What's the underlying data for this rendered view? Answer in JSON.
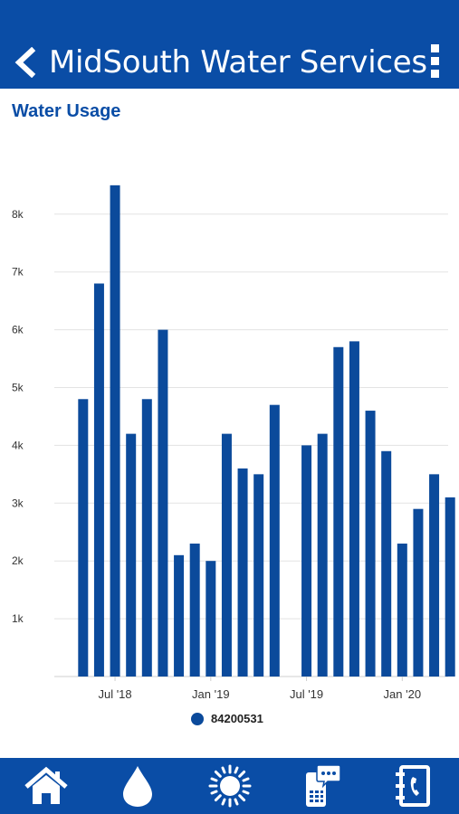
{
  "header": {
    "title": "MidSouth Water Services",
    "back_icon": "chevron-left-icon",
    "menu_icon": "more-vertical-icon"
  },
  "page": {
    "title": "Water Usage"
  },
  "colors": {
    "brand": "#0a4da6",
    "bar": "#0b4a9b",
    "grid": "#e3e3e3"
  },
  "chart_data": {
    "type": "bar",
    "categories": [
      "May '18",
      "Jun '18",
      "Jul '18",
      "Aug '18",
      "Sep '18",
      "Oct '18",
      "Nov '18",
      "Dec '18",
      "Jan '19",
      "Feb '19",
      "Mar '19",
      "Apr '19",
      "May '19",
      "Jun '19",
      "Jul '19",
      "Aug '19",
      "Sep '19",
      "Oct '19",
      "Nov '19",
      "Dec '19",
      "Jan '20",
      "Feb '20",
      "Mar '20",
      "Apr '20"
    ],
    "series": [
      {
        "name": "84200531",
        "values": [
          4800,
          6800,
          8500,
          4200,
          4800,
          6000,
          2100,
          2300,
          2000,
          4200,
          3600,
          3500,
          4700,
          null,
          4000,
          4200,
          5700,
          5800,
          4600,
          3900,
          2300,
          2900,
          3500,
          3100
        ]
      }
    ],
    "x_tick_labels": [
      "Jul '18",
      "Jan '19",
      "Jul '19",
      "Jan '20"
    ],
    "y_tick_labels": [
      "1k",
      "2k",
      "3k",
      "4k",
      "5k",
      "6k",
      "7k",
      "8k"
    ],
    "ylim": [
      0,
      8000
    ],
    "title": "",
    "xlabel": "",
    "ylabel": "",
    "grid": true,
    "legend": "bottom-center"
  },
  "bottom_nav": [
    {
      "name": "nav-home",
      "icon": "home-icon"
    },
    {
      "name": "nav-water",
      "icon": "water-drop-icon"
    },
    {
      "name": "nav-weather",
      "icon": "sun-icon"
    },
    {
      "name": "nav-messages",
      "icon": "mobile-message-icon"
    },
    {
      "name": "nav-contacts",
      "icon": "contact-phone-icon"
    }
  ]
}
